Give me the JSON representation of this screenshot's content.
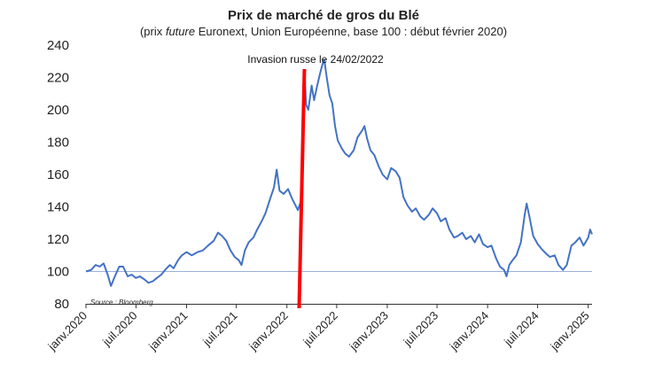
{
  "chart_data": {
    "type": "line",
    "title": "Prix de marché de gros du Blé",
    "subtitle_pre": "(prix ",
    "subtitle_em": "future",
    "subtitle_post": " Euronext, Union Européenne, base 100 : début février 2020)",
    "xlabel": "",
    "ylabel": "",
    "ylim": [
      80,
      240
    ],
    "yticks": [
      80,
      100,
      120,
      140,
      160,
      180,
      200,
      220,
      240
    ],
    "x_range": [
      "2020-01-01",
      "2025-01-15"
    ],
    "xtick_labels": [
      {
        "date": "2020-01-01",
        "label": "janv.2020"
      },
      {
        "date": "2020-07-01",
        "label": "juil.2020"
      },
      {
        "date": "2021-01-01",
        "label": "janv.2021"
      },
      {
        "date": "2021-07-01",
        "label": "juil.2021"
      },
      {
        "date": "2022-01-01",
        "label": "janv.2022"
      },
      {
        "date": "2022-07-01",
        "label": "juil.2022"
      },
      {
        "date": "2023-01-01",
        "label": "janv.2023"
      },
      {
        "date": "2023-07-01",
        "label": "juil.2023"
      },
      {
        "date": "2024-01-01",
        "label": "janv.2024"
      },
      {
        "date": "2024-07-01",
        "label": "juil.2024"
      },
      {
        "date": "2025-01-01",
        "label": "janv.2025"
      }
    ],
    "grid": false,
    "reference_line": 100,
    "series": [
      {
        "color": "#4472c4",
        "points": [
          [
            "2020-01-01",
            100
          ],
          [
            "2020-01-20",
            101
          ],
          [
            "2020-02-05",
            104
          ],
          [
            "2020-02-20",
            103
          ],
          [
            "2020-03-05",
            105
          ],
          [
            "2020-03-20",
            98
          ],
          [
            "2020-04-01",
            91
          ],
          [
            "2020-04-15",
            97
          ],
          [
            "2020-05-01",
            103
          ],
          [
            "2020-05-15",
            103
          ],
          [
            "2020-06-01",
            97
          ],
          [
            "2020-06-15",
            98
          ],
          [
            "2020-07-01",
            96
          ],
          [
            "2020-07-15",
            97
          ],
          [
            "2020-08-01",
            95
          ],
          [
            "2020-08-15",
            93
          ],
          [
            "2020-09-01",
            94
          ],
          [
            "2020-09-15",
            96
          ],
          [
            "2020-10-01",
            98
          ],
          [
            "2020-10-15",
            101
          ],
          [
            "2020-11-01",
            104
          ],
          [
            "2020-11-15",
            102
          ],
          [
            "2020-12-01",
            107
          ],
          [
            "2020-12-15",
            110
          ],
          [
            "2021-01-01",
            112
          ],
          [
            "2021-01-20",
            110
          ],
          [
            "2021-02-10",
            112
          ],
          [
            "2021-03-01",
            113
          ],
          [
            "2021-03-20",
            116
          ],
          [
            "2021-04-10",
            119
          ],
          [
            "2021-04-25",
            124
          ],
          [
            "2021-05-10",
            122
          ],
          [
            "2021-05-25",
            119
          ],
          [
            "2021-06-10",
            113
          ],
          [
            "2021-06-25",
            109
          ],
          [
            "2021-07-10",
            107
          ],
          [
            "2021-07-20",
            104
          ],
          [
            "2021-08-01",
            113
          ],
          [
            "2021-08-15",
            118
          ],
          [
            "2021-09-01",
            121
          ],
          [
            "2021-09-15",
            126
          ],
          [
            "2021-10-01",
            131
          ],
          [
            "2021-10-15",
            136
          ],
          [
            "2021-11-01",
            145
          ],
          [
            "2021-11-15",
            152
          ],
          [
            "2021-11-25",
            163
          ],
          [
            "2021-12-05",
            150
          ],
          [
            "2021-12-20",
            148
          ],
          [
            "2022-01-05",
            151
          ],
          [
            "2022-01-20",
            145
          ],
          [
            "2022-02-01",
            141
          ],
          [
            "2022-02-10",
            138
          ],
          [
            "2022-02-24",
            145
          ],
          [
            "2022-03-01",
            185
          ],
          [
            "2022-03-08",
            218
          ],
          [
            "2022-03-12",
            203
          ],
          [
            "2022-03-20",
            200
          ],
          [
            "2022-04-01",
            215
          ],
          [
            "2022-04-10",
            206
          ],
          [
            "2022-04-20",
            214
          ],
          [
            "2022-05-01",
            222
          ],
          [
            "2022-05-10",
            228
          ],
          [
            "2022-05-17",
            231
          ],
          [
            "2022-05-25",
            221
          ],
          [
            "2022-06-05",
            209
          ],
          [
            "2022-06-15",
            204
          ],
          [
            "2022-06-25",
            190
          ],
          [
            "2022-07-05",
            181
          ],
          [
            "2022-07-20",
            176
          ],
          [
            "2022-08-01",
            173
          ],
          [
            "2022-08-15",
            171
          ],
          [
            "2022-09-01",
            175
          ],
          [
            "2022-09-15",
            183
          ],
          [
            "2022-10-01",
            187
          ],
          [
            "2022-10-10",
            190
          ],
          [
            "2022-10-20",
            182
          ],
          [
            "2022-11-01",
            175
          ],
          [
            "2022-11-15",
            172
          ],
          [
            "2022-12-01",
            165
          ],
          [
            "2022-12-15",
            160
          ],
          [
            "2023-01-01",
            157
          ],
          [
            "2023-01-15",
            164
          ],
          [
            "2023-02-01",
            162
          ],
          [
            "2023-02-15",
            158
          ],
          [
            "2023-03-01",
            146
          ],
          [
            "2023-03-15",
            141
          ],
          [
            "2023-04-01",
            137
          ],
          [
            "2023-04-15",
            139
          ],
          [
            "2023-05-01",
            134
          ],
          [
            "2023-05-15",
            132
          ],
          [
            "2023-06-01",
            135
          ],
          [
            "2023-06-15",
            139
          ],
          [
            "2023-07-01",
            136
          ],
          [
            "2023-07-15",
            131
          ],
          [
            "2023-08-01",
            133
          ],
          [
            "2023-08-15",
            126
          ],
          [
            "2023-09-01",
            121
          ],
          [
            "2023-09-15",
            122
          ],
          [
            "2023-10-01",
            124
          ],
          [
            "2023-10-15",
            120
          ],
          [
            "2023-11-01",
            122
          ],
          [
            "2023-11-15",
            118
          ],
          [
            "2023-12-01",
            123
          ],
          [
            "2023-12-15",
            117
          ],
          [
            "2024-01-01",
            115
          ],
          [
            "2024-01-15",
            116
          ],
          [
            "2024-02-01",
            108
          ],
          [
            "2024-02-15",
            103
          ],
          [
            "2024-03-01",
            101
          ],
          [
            "2024-03-10",
            97
          ],
          [
            "2024-03-20",
            104
          ],
          [
            "2024-04-01",
            107
          ],
          [
            "2024-04-15",
            110
          ],
          [
            "2024-05-01",
            118
          ],
          [
            "2024-05-15",
            135
          ],
          [
            "2024-05-22",
            142
          ],
          [
            "2024-06-01",
            134
          ],
          [
            "2024-06-15",
            122
          ],
          [
            "2024-07-01",
            117
          ],
          [
            "2024-07-15",
            114
          ],
          [
            "2024-08-01",
            111
          ],
          [
            "2024-08-15",
            109
          ],
          [
            "2024-09-01",
            110
          ],
          [
            "2024-09-15",
            104
          ],
          [
            "2024-10-01",
            101
          ],
          [
            "2024-10-15",
            104
          ],
          [
            "2024-11-01",
            116
          ],
          [
            "2024-11-15",
            118
          ],
          [
            "2024-12-01",
            121
          ],
          [
            "2024-12-15",
            116
          ],
          [
            "2025-01-01",
            121
          ],
          [
            "2025-01-08",
            126
          ],
          [
            "2025-01-15",
            123
          ]
        ]
      }
    ],
    "annotation": {
      "text": "Invasion russe le 24/02/2022",
      "date": "2022-02-24",
      "color": "#ff0000"
    },
    "source": "Source : Bloomberg"
  }
}
